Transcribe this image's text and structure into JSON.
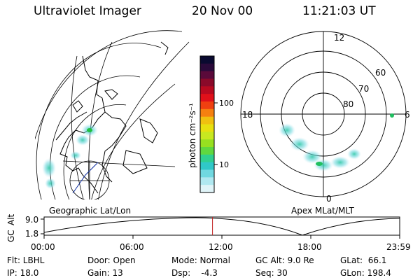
{
  "header": {
    "instrument": "Ultraviolet Imager",
    "date": "20 Nov 00",
    "time": "11:21:03 UT"
  },
  "colorbar": {
    "unit_label": "photon cm⁻²s⁻¹",
    "ticks": [
      "100",
      "10"
    ],
    "colors": [
      "#0a0a30",
      "#2a0a3a",
      "#5a0a3a",
      "#8a0a2a",
      "#b80a20",
      "#e0101a",
      "#f04010",
      "#f58010",
      "#f0c010",
      "#e8e010",
      "#c8e820",
      "#98e020",
      "#60d840",
      "#30d090",
      "#30c8c8",
      "#70d8e0",
      "#b0e8f0",
      "#e0f4f8"
    ]
  },
  "left_map": {
    "caption": "Geographic Lat/Lon"
  },
  "right_map": {
    "caption": "Apex MLat/MLT",
    "mlt_labels": {
      "top": "12",
      "left": "18",
      "right": "6",
      "bottom": "0"
    },
    "lat_labels": [
      "60",
      "70",
      "80"
    ]
  },
  "timeline": {
    "axis_label_top": "GC",
    "axis_label_bottom": "Alt",
    "y_ticks": [
      "9.0",
      "1.8"
    ],
    "x_ticks": [
      "00:00",
      "06:00",
      "12:00",
      "18:00",
      "23:59"
    ],
    "current_fraction": 0.4736
  },
  "info": {
    "filter": "Flt: LBHL",
    "ip": "IP: 18.0",
    "door": "Door: Open",
    "gain": "Gain: 13",
    "mode": "Mode: Normal",
    "dsp": "Dsp:    -4.3",
    "gc_alt": "GC Alt: 9.0 Re",
    "seq": "Seq: 30",
    "glat": "GLat:  66.1",
    "glon": "GLon: 198.4"
  }
}
